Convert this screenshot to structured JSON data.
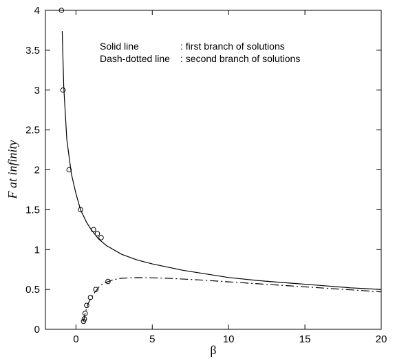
{
  "chart_data": {
    "type": "line",
    "title": "",
    "xlabel": "β",
    "ylabel": "F at infinity",
    "xlim": [
      -2,
      20
    ],
    "ylim": [
      0,
      4
    ],
    "xticks": [
      0,
      5,
      10,
      15,
      20
    ],
    "yticks": [
      0,
      0.5,
      1,
      1.5,
      2,
      2.5,
      3,
      3.5,
      4
    ],
    "xtick_labels": [
      "0",
      "5",
      "10",
      "15",
      "20"
    ],
    "ytick_labels": [
      "0",
      "0.5",
      "1",
      "1.5",
      "2",
      "2.5",
      "3",
      "3.5",
      "4"
    ],
    "grid": false,
    "annotations": [
      {
        "label": "Solid line",
        "text": ": first branch of solutions"
      },
      {
        "label": "Dash-dotted line",
        "text": ": second branch of solutions"
      }
    ],
    "series": [
      {
        "style": "solid",
        "x": [
          -0.9,
          -0.8,
          -0.6,
          -0.3,
          0.0,
          0.3,
          0.7,
          1.0,
          1.5,
          2.0,
          3.0,
          4.0,
          5.0,
          6.0,
          7.0,
          8.0,
          10.0,
          12.0,
          14.0,
          16.0,
          18.0,
          20.0
        ],
        "y": [
          3.74,
          3.05,
          2.38,
          1.95,
          1.7,
          1.5,
          1.34,
          1.25,
          1.13,
          1.05,
          0.94,
          0.87,
          0.82,
          0.78,
          0.74,
          0.71,
          0.65,
          0.61,
          0.58,
          0.55,
          0.52,
          0.5
        ]
      },
      {
        "style": "dash-dot",
        "x": [
          0.5,
          0.6,
          0.75,
          1.0,
          1.3,
          1.6,
          2.0,
          2.5,
          3.0,
          3.5,
          4.0,
          5.0,
          6.0,
          8.0,
          10.0,
          12.0,
          14.0,
          16.0,
          18.0,
          20.0
        ],
        "y": [
          0.1,
          0.2,
          0.3,
          0.4,
          0.48,
          0.55,
          0.59,
          0.625,
          0.64,
          0.645,
          0.648,
          0.645,
          0.64,
          0.62,
          0.595,
          0.57,
          0.545,
          0.52,
          0.495,
          0.47
        ]
      },
      {
        "style": "markers",
        "marker": "circle",
        "x": [
          -0.95,
          -0.85,
          -0.45,
          0.3,
          1.15,
          1.4,
          1.65,
          0.5,
          0.55,
          0.6,
          0.7,
          0.95,
          1.3,
          2.1
        ],
        "y": [
          4.0,
          3.0,
          2.0,
          1.5,
          1.25,
          1.2,
          1.15,
          0.1,
          0.13,
          0.2,
          0.3,
          0.4,
          0.5,
          0.6
        ]
      }
    ]
  }
}
